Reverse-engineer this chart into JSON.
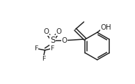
{
  "bg_color": "#ffffff",
  "line_color": "#222222",
  "line_width": 1.1,
  "font_size": 6.8,
  "figsize": [
    1.94,
    1.22
  ],
  "dpi": 100,
  "xlim": [
    0,
    9.7
  ],
  "ylim": [
    0,
    5.8
  ]
}
